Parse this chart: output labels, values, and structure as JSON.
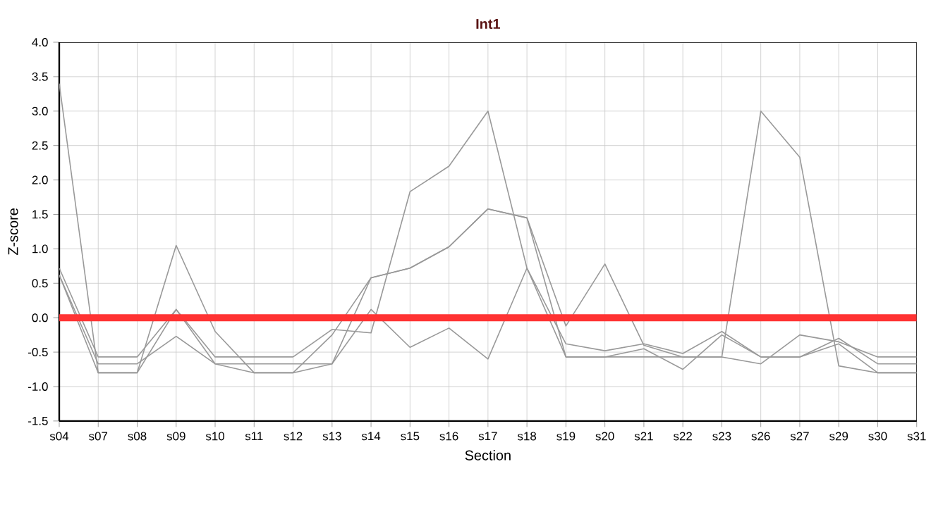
{
  "chart_data": {
    "type": "line",
    "title": "Int1",
    "xlabel": "Section",
    "ylabel": "Z-score",
    "categories": [
      "s04",
      "s07",
      "s08",
      "s09",
      "s10",
      "s11",
      "s12",
      "s13",
      "s14",
      "s15",
      "s16",
      "s17",
      "s18",
      "s19",
      "s20",
      "s21",
      "s22",
      "s23",
      "s26",
      "s27",
      "s29",
      "s30",
      "s31"
    ],
    "series": [
      {
        "color": "#999999",
        "values": [
          3.4,
          -0.8,
          -0.8,
          1.05,
          -0.2,
          -0.8,
          -0.8,
          -0.25,
          0.58,
          0.72,
          1.03,
          1.58,
          1.45,
          -0.12,
          0.78,
          -0.4,
          -0.57,
          -0.57,
          3.0,
          2.33,
          -0.7,
          -0.8,
          -0.8
        ]
      },
      {
        "color": "#999999",
        "values": [
          0.72,
          -0.57,
          -0.57,
          0.12,
          -0.57,
          -0.57,
          -0.57,
          -0.17,
          -0.22,
          1.83,
          2.2,
          3.0,
          0.72,
          -0.57,
          -0.57,
          -0.57,
          -0.57,
          -0.57,
          -0.67,
          -0.25,
          -0.35,
          -0.57,
          -0.57
        ]
      },
      {
        "color": "#999999",
        "values": [
          0.62,
          -0.67,
          -0.67,
          -0.27,
          -0.67,
          -0.67,
          -0.67,
          -0.67,
          0.12,
          -0.43,
          -0.15,
          -0.6,
          0.72,
          -0.38,
          -0.48,
          -0.38,
          -0.52,
          -0.2,
          -0.57,
          -0.57,
          -0.3,
          -0.67,
          -0.67
        ]
      },
      {
        "color": "#999999",
        "values": [
          0.62,
          -0.8,
          -0.8,
          0.12,
          -0.67,
          -0.8,
          -0.8,
          -0.67,
          0.58,
          0.72,
          1.03,
          1.58,
          1.45,
          -0.57,
          -0.57,
          -0.45,
          -0.75,
          -0.25,
          -0.57,
          -0.57,
          -0.38,
          -0.8,
          -0.8
        ]
      }
    ],
    "ylim": [
      -1.5,
      4.0
    ],
    "yticks": [
      {
        "value": -1.5,
        "label": "-1.5"
      },
      {
        "value": -1,
        "label": "-1.0"
      },
      {
        "value": -0.5,
        "label": "-0.5"
      },
      {
        "value": 0,
        "label": "0.0"
      },
      {
        "value": 0.5,
        "label": "0.5"
      },
      {
        "value": 1,
        "label": "1.0"
      },
      {
        "value": 1.5,
        "label": "1.5"
      },
      {
        "value": 2,
        "label": "2.0"
      },
      {
        "value": 2.5,
        "label": "2.5"
      },
      {
        "value": 3,
        "label": "3.0"
      },
      {
        "value": 3.5,
        "label": "3.5"
      },
      {
        "value": 4,
        "label": "4.0"
      }
    ],
    "ref_lines": [
      {
        "axis": "y",
        "value": 0,
        "color": "#ff3333"
      }
    ],
    "grid": true,
    "legend": false,
    "marker": "none",
    "line_style": "solid"
  }
}
